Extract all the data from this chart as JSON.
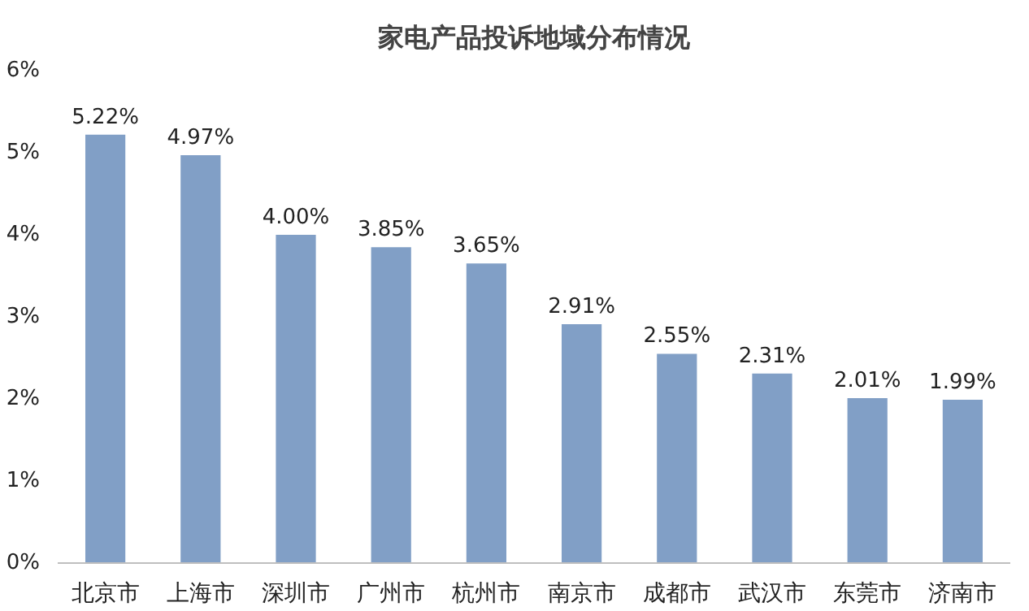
{
  "chart_data": {
    "type": "bar",
    "title": "家电产品投诉地域分布情况",
    "categories": [
      "北京市",
      "上海市",
      "深圳市",
      "广州市",
      "杭州市",
      "南京市",
      "成都市",
      "武汉市",
      "东莞市",
      "济南市"
    ],
    "values": [
      5.22,
      4.97,
      4.0,
      3.85,
      3.65,
      2.91,
      2.55,
      2.31,
      2.01,
      1.99
    ],
    "value_labels": [
      "5.22%",
      "4.97%",
      "4.00%",
      "3.85%",
      "3.65%",
      "2.91%",
      "2.55%",
      "2.31%",
      "2.01%",
      "1.99%"
    ],
    "color": "#819fc6",
    "ylim": [
      0,
      6
    ],
    "yticks": [
      {
        "value": 0,
        "label": "0%"
      },
      {
        "value": 1,
        "label": "1%"
      },
      {
        "value": 2,
        "label": "2%"
      },
      {
        "value": 3,
        "label": "3%"
      },
      {
        "value": 4,
        "label": "4%"
      },
      {
        "value": 5,
        "label": "5%"
      },
      {
        "value": 6,
        "label": "6%"
      }
    ],
    "grid": false
  }
}
